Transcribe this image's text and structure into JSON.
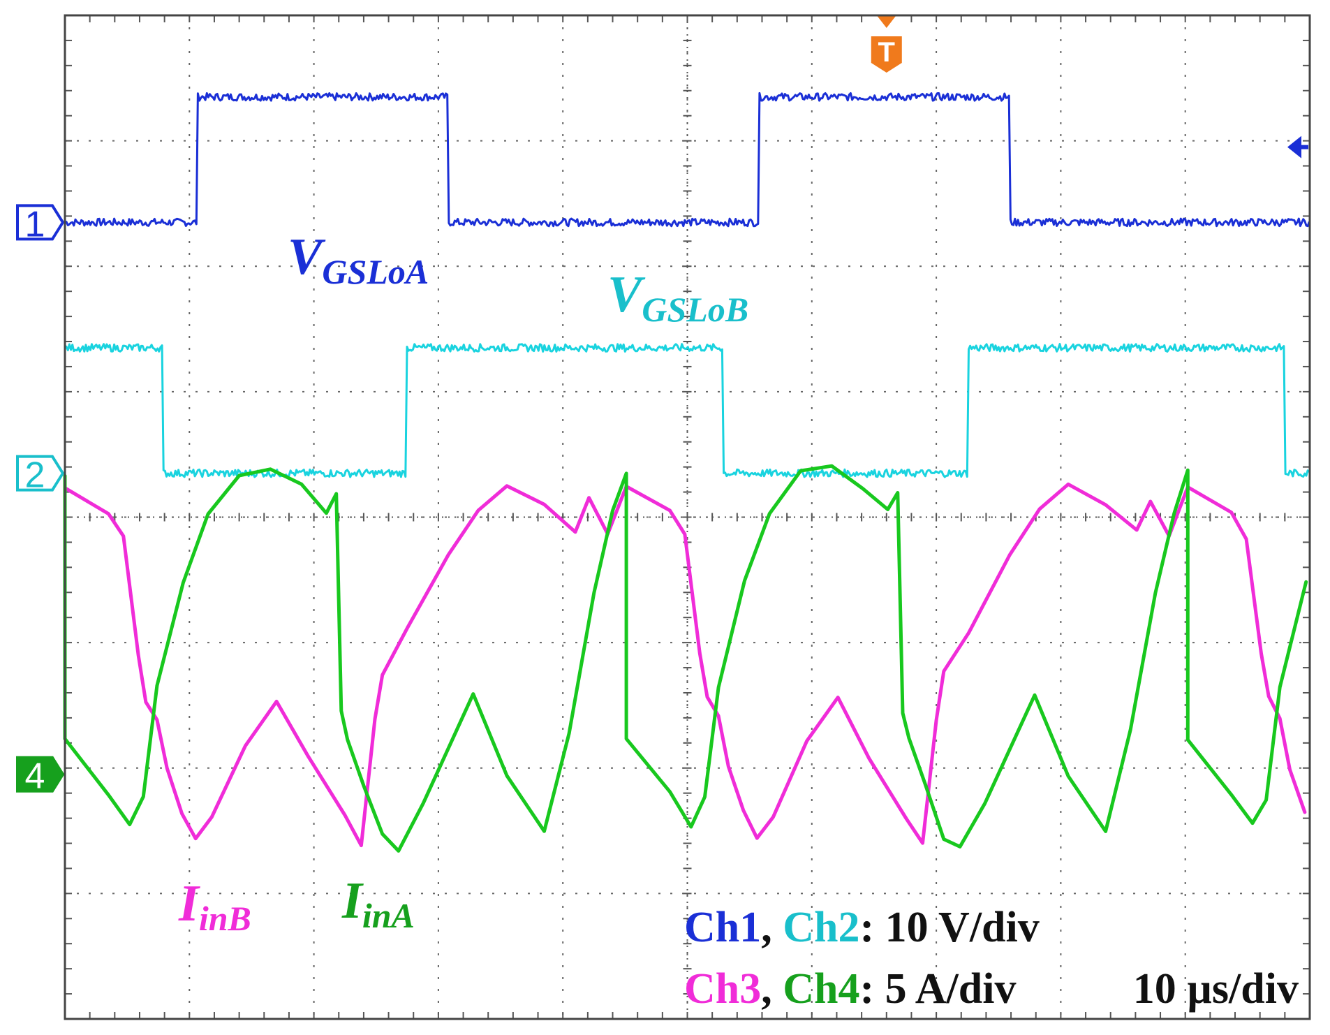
{
  "chart_data": {
    "type": "line",
    "title": "",
    "xlabel": "",
    "ylabel": "",
    "x_unit": "µs",
    "xlim": [
      -50,
      50
    ],
    "ylim_div": [
      -4,
      4
    ],
    "grid": true,
    "divisions": {
      "x": 10,
      "y": 8
    },
    "colors": {
      "ch1": "#1a2fd6",
      "ch2": "#19d3df",
      "ch3": "#f02cd8",
      "ch4": "#18c81e",
      "trigger": "#f07a1c"
    },
    "channel_markers": [
      {
        "id": "1",
        "label": "1",
        "level_div": 2.35
      },
      {
        "id": "2",
        "label": "2",
        "level_div": 0.35
      },
      {
        "id": "4",
        "label": "4",
        "level_div": -2.05
      }
    ],
    "trigger_marker": {
      "label": "T",
      "time_us": 16
    },
    "trigger_level_div": 2.95,
    "series": [
      {
        "id": "ch1",
        "name": "VGSLoA",
        "label": {
          "main": "V",
          "sub": "GSLoA"
        },
        "low_div": 2.35,
        "high_div": 3.35,
        "period_us": 45.1,
        "rising_us": [
          -39.4,
          5.7,
          50.8,
          -84.5
        ],
        "falling_us": [
          -19.2,
          25.9,
          -64.3,
          71.0
        ]
      },
      {
        "id": "ch2",
        "name": "VGSLoB",
        "label": {
          "main": "V",
          "sub": "GSLoB"
        },
        "low_div": 0.35,
        "high_div": 1.35,
        "period_us": 45.1,
        "rising_us": [
          -22.6,
          22.5,
          67.6,
          -67.7
        ],
        "falling_us": [
          -42.2,
          2.9,
          48.0,
          -87.3
        ]
      },
      {
        "id": "ch3",
        "name": "IinB",
        "label": {
          "main": "I",
          "sub": "inB"
        },
        "points_first_period": [
          [
            -50.0,
            0.25
          ],
          [
            -46.5,
            0.05
          ],
          [
            -45.3,
            -0.15
          ],
          [
            -44.1,
            -1.1
          ],
          [
            -43.5,
            -1.45
          ],
          [
            -42.6,
            -1.6
          ],
          [
            -41.8,
            -2.0
          ],
          [
            -40.6,
            -2.35
          ],
          [
            -39.5,
            -2.55
          ],
          [
            -38.2,
            -2.4
          ],
          [
            -35.5,
            -1.8
          ],
          [
            -33.0,
            -1.45
          ],
          [
            -30.5,
            -1.9
          ],
          [
            -27.5,
            -2.4
          ],
          [
            -26.2,
            -2.6
          ],
          [
            -25.1,
            -1.6
          ],
          [
            -24.5,
            -1.25
          ],
          [
            -22.5,
            -0.9
          ],
          [
            -19.2,
            -0.3
          ],
          [
            -16.8,
            0.05
          ],
          [
            -14.5,
            0.25
          ],
          [
            -11.5,
            0.1
          ],
          [
            -9.0,
            -0.1
          ],
          [
            -7.9,
            0.15
          ],
          [
            -6.4,
            -0.15
          ]
        ]
      },
      {
        "id": "ch4",
        "name": "IinA",
        "label": {
          "main": "I",
          "sub": "inA"
        },
        "points_first_period": [
          [
            -50.0,
            -1.75
          ],
          [
            -46.5,
            -2.2
          ],
          [
            -44.8,
            -2.45
          ],
          [
            -43.7,
            -2.25
          ],
          [
            -42.6,
            -1.35
          ],
          [
            -40.5,
            -0.5
          ],
          [
            -38.5,
            0.05
          ],
          [
            -36.0,
            0.35
          ],
          [
            -33.5,
            0.4
          ],
          [
            -31.0,
            0.25
          ],
          [
            -29.0,
            0.05
          ],
          [
            -28.2,
            0.2
          ],
          [
            -27.8,
            -1.55
          ],
          [
            -27.3,
            -1.75
          ],
          [
            -26.0,
            -2.15
          ],
          [
            -24.5,
            -2.55
          ],
          [
            -23.2,
            -2.65
          ],
          [
            -21.2,
            -2.3
          ],
          [
            -17.2,
            -1.4
          ],
          [
            -14.5,
            -2.05
          ],
          [
            -11.5,
            -2.5
          ],
          [
            -9.5,
            -1.7
          ],
          [
            -7.5,
            -0.6
          ],
          [
            -6.0,
            0.05
          ],
          [
            -4.9,
            0.35
          ]
        ]
      }
    ]
  },
  "settings": {
    "line1": {
      "a": "Ch1",
      "sep": ", ",
      "b": "Ch2",
      "rest": ": 10 V/div"
    },
    "line2": {
      "a": "Ch3",
      "sep": ", ",
      "b": "Ch4",
      "rest": ": 5 A/div",
      "timebase": "10 µs/div"
    }
  }
}
